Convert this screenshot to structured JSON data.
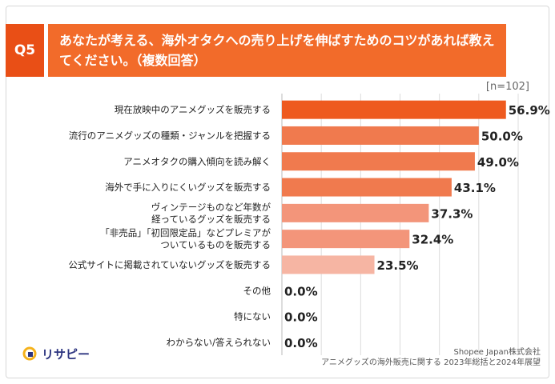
{
  "header": {
    "question_no": "Q5",
    "title": "あなたが考える、海外オタクへの売り上げを伸ばすためのコツがあれば教えてください。（複数回答）"
  },
  "sample_size": "[n=102]",
  "chart_data": {
    "type": "bar",
    "orientation": "horizontal",
    "categories": [
      "現在放映中のアニメグッズを販売する",
      "流行のアニメグッズの種類・ジャンルを把握する",
      "アニメオタクの購入傾向を読み解く",
      "海外で手に入りにくいグッズを販売する",
      "ヴィンテージものなど年数が\n経っているグッズを販売する",
      "「非売品」「初回限定品」などプレミアが\nついているものを販売する",
      "公式サイトに掲載されていないグッズを販売する",
      "その他",
      "特にない",
      "わからない/答えられない"
    ],
    "values": [
      56.9,
      50.0,
      49.0,
      43.1,
      37.3,
      32.4,
      23.5,
      0.0,
      0.0,
      0.0
    ],
    "value_labels": [
      "56.9%",
      "50.0%",
      "49.0%",
      "43.1%",
      "37.3%",
      "32.4%",
      "23.5%",
      "0.0%",
      "0.0%",
      "0.0%"
    ],
    "xlim": [
      0,
      60
    ],
    "grid": true,
    "colors": [
      "#ee5a1f",
      "#f07a4e",
      "#f07a4e",
      "#f07a4e",
      "#f3957a",
      "#f3957a",
      "#f6b5a3",
      "#f6b5a3",
      "#f6b5a3",
      "#f6b5a3"
    ]
  },
  "footer": {
    "line1": "Shopee Japan株式会社",
    "line2": "アニメグッズの海外販売に関する 2023年総括と2024年展望"
  },
  "logo": {
    "text": "リサピー"
  },
  "colors": {
    "badge": "#e94f16",
    "title_bg": "#f26b2a"
  }
}
